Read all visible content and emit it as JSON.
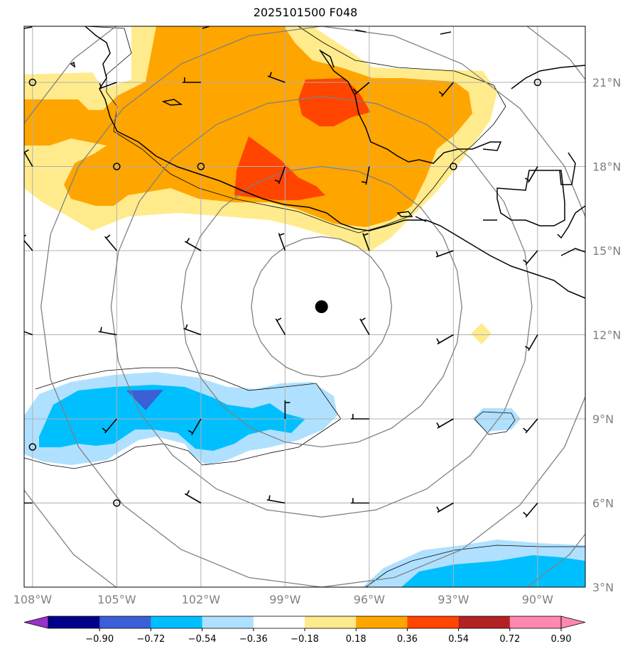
{
  "title": "2025101500 F048",
  "map": {
    "lon_range": [
      -108.3,
      -88.3
    ],
    "lat_range": [
      3,
      23
    ],
    "center_marker": {
      "lon": -97.7,
      "lat": 13.0
    },
    "range_rings_deg": [
      2.5,
      5,
      7.5,
      10,
      12.5
    ],
    "colors": {
      "pos_018": "#ffeb8c",
      "pos_036": "#ffa500",
      "pos_054": "#ff4500",
      "neg_018": "#b0e0ff",
      "neg_036": "#00bfff",
      "neg_054": "#3a5fd6",
      "coast": "#000000",
      "grid": "#b0b0b0",
      "rings": "#808080"
    }
  },
  "axes": {
    "x_ticks": [
      {
        "lon": -108,
        "label": "108°W"
      },
      {
        "lon": -105,
        "label": "105°W"
      },
      {
        "lon": -102,
        "label": "102°W"
      },
      {
        "lon": -99,
        "label": "99°W"
      },
      {
        "lon": -96,
        "label": "96°W"
      },
      {
        "lon": -93,
        "label": "93°W"
      },
      {
        "lon": -90,
        "label": "90°W"
      }
    ],
    "y_ticks": [
      {
        "lat": 21,
        "label": "21°N"
      },
      {
        "lat": 18,
        "label": "18°N"
      },
      {
        "lat": 15,
        "label": "15°N"
      },
      {
        "lat": 12,
        "label": "12°N"
      },
      {
        "lat": 9,
        "label": "9°N"
      },
      {
        "lat": 6,
        "label": "6°N"
      },
      {
        "lat": 3,
        "label": "3°N"
      }
    ]
  },
  "colorbar": {
    "labels": [
      "−0.90",
      "−0.72",
      "−0.54",
      "−0.36",
      "−0.18",
      "0.18",
      "0.36",
      "0.54",
      "0.72",
      "0.90"
    ],
    "colors": [
      "#9932cc",
      "#00008b",
      "#3a5fd6",
      "#00bfff",
      "#b0e0ff",
      "#ffffff",
      "#ffeb8c",
      "#ffa500",
      "#ff4500",
      "#b22222",
      "#ff88b0",
      "#ff88b0"
    ]
  },
  "wind_barbs": [
    {
      "lon": -108,
      "lat": 21,
      "type": "calm"
    },
    {
      "lon": -105,
      "lat": 21,
      "dir": 250
    },
    {
      "lon": -102,
      "lat": 21,
      "dir": 270
    },
    {
      "lon": -99,
      "lat": 21,
      "dir": 290
    },
    {
      "lon": -96,
      "lat": 21,
      "dir": 230
    },
    {
      "lon": -93,
      "lat": 21,
      "dir": 220
    },
    {
      "lon": -90,
      "lat": 21,
      "type": "calm"
    },
    {
      "lon": -108,
      "lat": 18,
      "dir": 330
    },
    {
      "lon": -105,
      "lat": 18,
      "type": "calm"
    },
    {
      "lon": -102,
      "lat": 18,
      "type": "calm"
    },
    {
      "lon": -99,
      "lat": 18,
      "dir": 200
    },
    {
      "lon": -96,
      "lat": 18,
      "dir": 190
    },
    {
      "lon": -93,
      "lat": 18,
      "type": "calm"
    },
    {
      "lon": -90,
      "lat": 18,
      "dir": 210
    },
    {
      "lon": -108,
      "lat": 15,
      "dir": 320
    },
    {
      "lon": -105,
      "lat": 15,
      "dir": 320
    },
    {
      "lon": -102,
      "lat": 15,
      "dir": 300
    },
    {
      "lon": -99,
      "lat": 15,
      "dir": 340
    },
    {
      "lon": -96,
      "lat": 15,
      "dir": 340
    },
    {
      "lon": -93,
      "lat": 15,
      "dir": 250
    },
    {
      "lon": -90,
      "lat": 15,
      "dir": 220
    },
    {
      "lon": -108,
      "lat": 12,
      "dir": 290
    },
    {
      "lon": -105,
      "lat": 12,
      "dir": 280
    },
    {
      "lon": -102,
      "lat": 12,
      "dir": 290
    },
    {
      "lon": -99,
      "lat": 12,
      "dir": 330
    },
    {
      "lon": -96,
      "lat": 12,
      "dir": 330
    },
    {
      "lon": -93,
      "lat": 12,
      "dir": 240
    },
    {
      "lon": -90,
      "lat": 12,
      "dir": 210
    },
    {
      "lon": -105,
      "lat": 9,
      "dir": 220
    },
    {
      "lon": -102,
      "lat": 9,
      "dir": 210
    },
    {
      "lon": -99,
      "lat": 9,
      "dir": 0
    },
    {
      "lon": -96,
      "lat": 9,
      "dir": 270
    },
    {
      "lon": -93,
      "lat": 9,
      "dir": 240
    },
    {
      "lon": -90,
      "lat": 9,
      "dir": 220
    },
    {
      "lon": -108,
      "lat": 8,
      "type": "calm"
    },
    {
      "lon": -108,
      "lat": 6,
      "dir": 270
    },
    {
      "lon": -105,
      "lat": 6,
      "type": "calm"
    },
    {
      "lon": -102,
      "lat": 6,
      "dir": 300
    },
    {
      "lon": -99,
      "lat": 6,
      "dir": 280
    },
    {
      "lon": -96,
      "lat": 6,
      "dir": 270
    },
    {
      "lon": -93,
      "lat": 6,
      "dir": 240
    },
    {
      "lon": -90,
      "lat": 6,
      "dir": 220
    }
  ]
}
